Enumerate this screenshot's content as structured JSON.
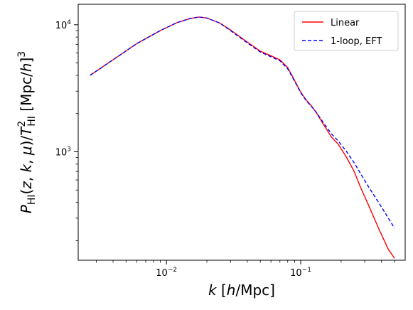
{
  "chart_data": {
    "type": "line",
    "xscale": "log",
    "yscale": "log",
    "xlim": [
      0.0022,
      0.6
    ],
    "ylim": [
      140,
      14500
    ],
    "xlabel": "k [h/Mpc]",
    "ylabel": "P_HI(z, k, μ)/T_HI^2 [Mpc/h]^3",
    "x_major_ticks": [
      {
        "value": 0.01,
        "base": "10",
        "exp": "−2"
      },
      {
        "value": 0.1,
        "base": "10",
        "exp": "−1"
      }
    ],
    "y_major_ticks": [
      {
        "value": 1000,
        "base": "10",
        "exp": "3"
      },
      {
        "value": 10000,
        "base": "10",
        "exp": "4"
      }
    ],
    "legend": {
      "position": "upper right"
    },
    "series": [
      {
        "name": "Linear",
        "color": "#ff0000",
        "style": "solid",
        "x": [
          0.0027,
          0.004,
          0.006,
          0.009,
          0.012,
          0.015,
          0.0175,
          0.02,
          0.025,
          0.03,
          0.04,
          0.05,
          0.06,
          0.07,
          0.08,
          0.09,
          0.1,
          0.11,
          0.12,
          0.13,
          0.15,
          0.17,
          0.19,
          0.22,
          0.25,
          0.28,
          0.32,
          0.38,
          0.45,
          0.5
        ],
        "y": [
          4000,
          5300,
          7100,
          9000,
          10400,
          11200,
          11500,
          11300,
          10300,
          9100,
          7300,
          6200,
          5700,
          5300,
          4600,
          3650,
          2950,
          2550,
          2300,
          2050,
          1600,
          1300,
          1150,
          900,
          700,
          520,
          380,
          250,
          170,
          145
        ]
      },
      {
        "name": "1-loop, EFT",
        "color": "#0000ff",
        "style": "dashed",
        "x": [
          0.0027,
          0.004,
          0.006,
          0.009,
          0.012,
          0.015,
          0.0175,
          0.02,
          0.025,
          0.03,
          0.04,
          0.05,
          0.06,
          0.07,
          0.08,
          0.09,
          0.1,
          0.11,
          0.12,
          0.13,
          0.15,
          0.17,
          0.19,
          0.22,
          0.25,
          0.28,
          0.32,
          0.38,
          0.45,
          0.5
        ],
        "y": [
          4000,
          5300,
          7100,
          9000,
          10400,
          11200,
          11500,
          11300,
          10300,
          9000,
          7200,
          6100,
          5600,
          5200,
          4500,
          3600,
          2920,
          2520,
          2280,
          2060,
          1650,
          1380,
          1220,
          1000,
          820,
          670,
          530,
          400,
          300,
          250
        ]
      }
    ]
  }
}
